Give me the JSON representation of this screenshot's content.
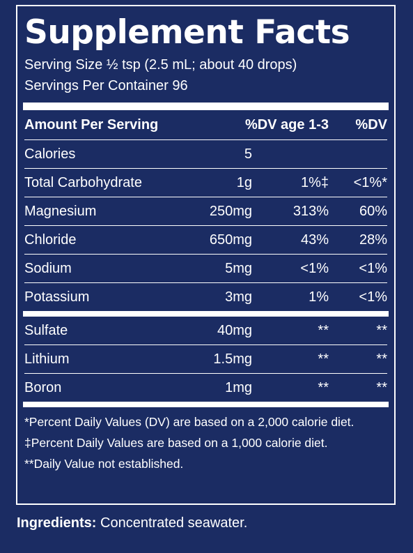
{
  "title": "Supplement Facts",
  "serving_size": "Serving Size ½ tsp (2.5 mL; about 40 drops)",
  "servings_per_container": "Servings Per Container 96",
  "header": {
    "amount": "Amount Per Serving",
    "dv_child": "%DV age 1-3",
    "dv": "%DV"
  },
  "rows_main": [
    {
      "name": "Calories",
      "amount": "5",
      "dv_child": "",
      "dv": ""
    },
    {
      "name": "Total Carbohydrate",
      "amount": "1g",
      "dv_child": "1%‡",
      "dv": "<1%*"
    },
    {
      "name": "Magnesium",
      "amount": "250mg",
      "dv_child": "313%",
      "dv": "60%"
    },
    {
      "name": "Chloride",
      "amount": "650mg",
      "dv_child": "43%",
      "dv": "28%"
    },
    {
      "name": "Sodium",
      "amount": "5mg",
      "dv_child": "<1%",
      "dv": "<1%"
    },
    {
      "name": "Potassium",
      "amount": "3mg",
      "dv_child": "1%",
      "dv": "<1%"
    }
  ],
  "rows_other": [
    {
      "name": "Sulfate",
      "amount": "40mg",
      "dv_child": "**",
      "dv": "**"
    },
    {
      "name": "Lithium",
      "amount": "1.5mg",
      "dv_child": "**",
      "dv": "**"
    },
    {
      "name": "Boron",
      "amount": "1mg",
      "dv_child": "**",
      "dv": "**"
    }
  ],
  "footnotes": [
    "*Percent Daily Values (DV) are based on a 2,000 calorie diet.",
    "‡Percent Daily Values are based on a 1,000 calorie diet.",
    "**Daily Value not established."
  ],
  "ingredients": {
    "label": "Ingredients:",
    "text": " Concentrated seawater."
  }
}
